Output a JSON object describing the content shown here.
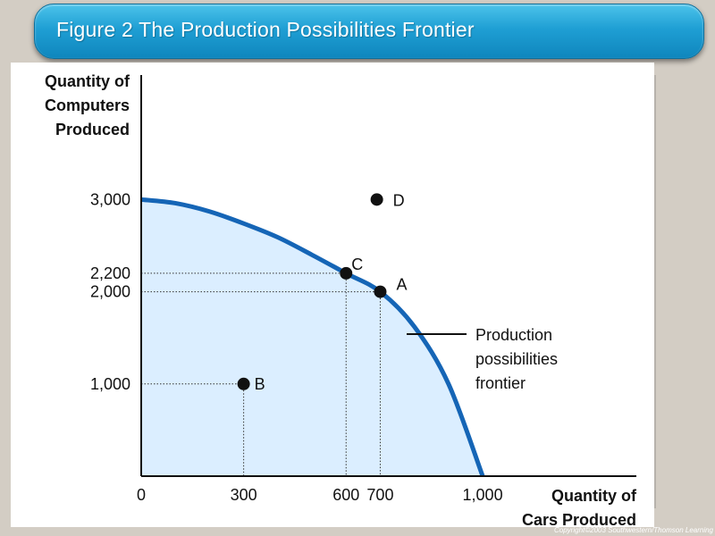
{
  "title": "Figure 2 The Production Possibilities Frontier",
  "copyright": "Copyright©2003 Southwestern/Thomson Learning",
  "chart_data": {
    "type": "area",
    "ylabel": "Quantity of Computers Produced",
    "ylabel_lines": [
      "Quantity of",
      "Computers",
      "Produced"
    ],
    "xlabel": "Quantity of Cars Produced",
    "xlabel_lines": [
      "Quantity of",
      "Cars Produced"
    ],
    "xlim": [
      0,
      1450
    ],
    "ylim": [
      0,
      4350
    ],
    "x_ticks": [
      {
        "value": 0,
        "label": "0"
      },
      {
        "value": 300,
        "label": "300"
      },
      {
        "value": 600,
        "label": "600"
      },
      {
        "value": 700,
        "label": "700"
      },
      {
        "value": 1000,
        "label": "1,000"
      }
    ],
    "y_ticks": [
      {
        "value": 1000,
        "label": "1,000"
      },
      {
        "value": 2000,
        "label": "2,000"
      },
      {
        "value": 2200,
        "label": "2,200"
      },
      {
        "value": 3000,
        "label": "3,000"
      }
    ],
    "frontier": {
      "name": "Production possibilities frontier",
      "label_lines": [
        "Production",
        "possibilities",
        "frontier"
      ],
      "color": "#1565b6",
      "fill": "#dbeeff",
      "points": [
        {
          "x": 0,
          "y": 3000
        },
        {
          "x": 100,
          "y": 2960
        },
        {
          "x": 200,
          "y": 2870
        },
        {
          "x": 300,
          "y": 2740
        },
        {
          "x": 400,
          "y": 2590
        },
        {
          "x": 500,
          "y": 2400
        },
        {
          "x": 600,
          "y": 2200
        },
        {
          "x": 700,
          "y": 2000
        },
        {
          "x": 800,
          "y": 1620
        },
        {
          "x": 900,
          "y": 1000
        },
        {
          "x": 1000,
          "y": 0
        }
      ]
    },
    "points": [
      {
        "label": "A",
        "x": 700,
        "y": 2000
      },
      {
        "label": "B",
        "x": 300,
        "y": 1000
      },
      {
        "label": "C",
        "x": 600,
        "y": 2200
      },
      {
        "label": "D",
        "x": 690,
        "y": 3000
      }
    ],
    "guides": [
      {
        "x": 300,
        "y": 1000
      },
      {
        "x": 600,
        "y": 2200
      },
      {
        "x": 700,
        "y": 2000
      }
    ]
  }
}
